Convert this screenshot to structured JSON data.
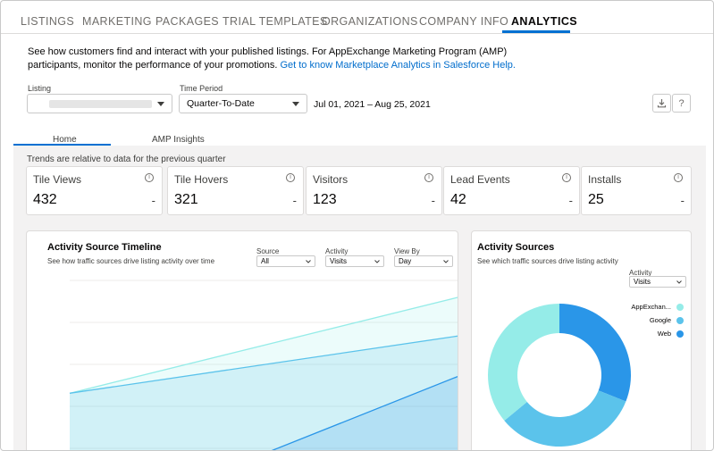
{
  "nav": {
    "tabs": [
      {
        "label": "LISTINGS"
      },
      {
        "label": "MARKETING"
      },
      {
        "label": "PACKAGES"
      },
      {
        "label": "TRIAL TEMPLATES"
      },
      {
        "label": "ORGANIZATIONS"
      },
      {
        "label": "COMPANY INFO"
      },
      {
        "label": "ANALYTICS"
      }
    ],
    "active": "ANALYTICS"
  },
  "intro": {
    "text": "See how customers find and interact with your published listings. For AppExchange Marketing Program (AMP) participants, monitor the performance of your promotions. ",
    "link": "Get to know Marketplace Analytics in Salesforce Help."
  },
  "filters": {
    "listing_label": "Listing",
    "period_label": "Time Period",
    "period_value": "Quarter-To-Date",
    "date_range": "Jul 01, 2021  –  Aug 25, 2021",
    "download_icon": "download-icon",
    "help_label": "?"
  },
  "subtabs": {
    "home": "Home",
    "amp": "AMP Insights"
  },
  "trend_note": "Trends are relative to data for the previous quarter",
  "kpis": [
    {
      "title": "Tile Views",
      "value": "432",
      "trend": "-"
    },
    {
      "title": "Tile Hovers",
      "value": "321",
      "trend": "-"
    },
    {
      "title": "Visitors",
      "value": "123",
      "trend": "-"
    },
    {
      "title": "Lead Events",
      "value": "42",
      "trend": "-"
    },
    {
      "title": "Installs",
      "value": "25",
      "trend": "-"
    }
  ],
  "info_glyph": "i",
  "timeline": {
    "title": "Activity Source Timeline",
    "subtitle": "See how traffic sources drive listing activity over time",
    "source_label": "Source",
    "source_value": "All",
    "activity_label": "Activity",
    "activity_value": "Visits",
    "viewby_label": "View By",
    "viewby_value": "Day"
  },
  "sources": {
    "title": "Activity Sources",
    "subtitle": "See which traffic sources drive listing activity",
    "activity_label": "Activity",
    "activity_value": "Visits",
    "legend": [
      {
        "name": "AppExchan...",
        "color": "#95ece8"
      },
      {
        "name": "Google",
        "color": "#5bc3eb"
      },
      {
        "name": "Web",
        "color": "#2a96e8"
      }
    ]
  },
  "chart_data": [
    {
      "type": "area",
      "series": [
        {
          "color": "#95ece8",
          "values": [
            0.38,
            1.0
          ]
        },
        {
          "color": "#5bc3eb",
          "values": [
            0.38,
            0.75
          ]
        },
        {
          "color": "#2a96e8",
          "values": [
            0.0,
            0.0,
            0.5
          ]
        }
      ],
      "ylim": [
        0,
        1.1
      ],
      "grid": true
    },
    {
      "type": "pie",
      "donut": true,
      "slices": [
        {
          "label": "AppExchan...",
          "value": 36,
          "color": "#95ece8"
        },
        {
          "label": "Google",
          "value": 33,
          "color": "#5bc3eb"
        },
        {
          "label": "Web",
          "value": 31,
          "color": "#2a96e8"
        }
      ]
    }
  ]
}
